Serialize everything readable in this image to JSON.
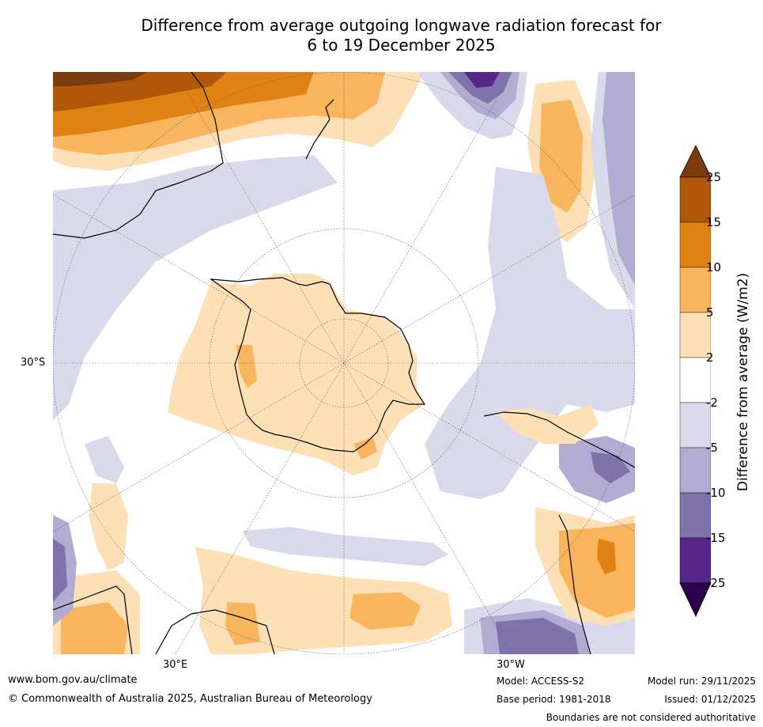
{
  "title": {
    "line1": "Difference from average outgoing longwave radiation forecast for",
    "line2": "6 to 19 December 2025"
  },
  "map": {
    "projection": "south-polar",
    "lat_label": "30°S",
    "lon_labels": [
      "30°E",
      "30°W"
    ]
  },
  "colorbar": {
    "label": "Difference from average (W/m2)",
    "ticks": [
      "25",
      "15",
      "10",
      "5",
      "2",
      "-2",
      "-5",
      "-10",
      "-15",
      "-25"
    ],
    "colors": {
      "above25": "#7a3b0f",
      "c15_25": "#b1570a",
      "c10_15": "#e08213",
      "c5_10": "#f9b45e",
      "c2_5": "#fee0b6",
      "neutral": "#ffffff",
      "cm2_m5": "#d8daeb",
      "cm5_m10": "#b2abd2",
      "cm10_m15": "#8073ac",
      "cm15_m25": "#542788",
      "below25": "#2d004b"
    }
  },
  "footer": {
    "website": "www.bom.gov.au/climate",
    "copyright": "© Commonwealth of Australia 2025, Australian Bureau of Meteorology",
    "model": "Model: ACCESS-S2",
    "base_period": "Base period: 1981-2018",
    "model_run": "Model run: 29/11/2025",
    "issued": "Issued: 01/12/2025",
    "disclaimer": "Boundaries are not considered authoritative"
  }
}
